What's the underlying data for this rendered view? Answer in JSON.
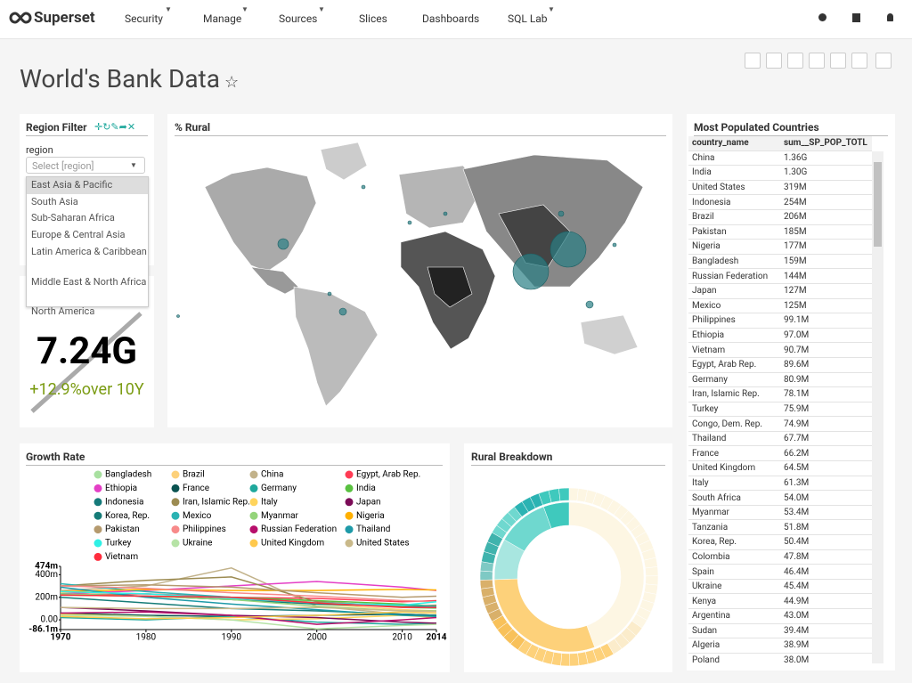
{
  "navbar": {
    "brand": "Superset",
    "menu": [
      "Security",
      "Manage",
      "Sources",
      "Slices",
      "Dashboards",
      "SQL Lab"
    ]
  },
  "dashboard": {
    "title": "World's Bank Data"
  },
  "region_filter": {
    "title": "Region Filter",
    "label": "region",
    "placeholder": "Select [region]",
    "options": [
      "East Asia & Pacific",
      "South Asia",
      "Sub-Saharan Africa",
      "Europe & Central Asia",
      "Latin America & Caribbean",
      "Middle East & North Africa",
      "North America"
    ]
  },
  "big_number": {
    "value": "7.24G",
    "change": "+12.9%over 10Y"
  },
  "map": {
    "title": "% Rural"
  },
  "table": {
    "title": "Most Populated Countries",
    "columns": [
      "country_name",
      "sum__SP_POP_TOTL"
    ],
    "rows": [
      [
        "China",
        "1.36G"
      ],
      [
        "India",
        "1.30G"
      ],
      [
        "United States",
        "319M"
      ],
      [
        "Indonesia",
        "254M"
      ],
      [
        "Brazil",
        "206M"
      ],
      [
        "Pakistan",
        "185M"
      ],
      [
        "Nigeria",
        "177M"
      ],
      [
        "Bangladesh",
        "159M"
      ],
      [
        "Russian Federation",
        "144M"
      ],
      [
        "Japan",
        "127M"
      ],
      [
        "Mexico",
        "125M"
      ],
      [
        "Philippines",
        "99.1M"
      ],
      [
        "Ethiopia",
        "97.0M"
      ],
      [
        "Vietnam",
        "90.7M"
      ],
      [
        "Egypt, Arab Rep.",
        "89.6M"
      ],
      [
        "Germany",
        "80.9M"
      ],
      [
        "Iran, Islamic Rep.",
        "78.1M"
      ],
      [
        "Turkey",
        "75.9M"
      ],
      [
        "Congo, Dem. Rep.",
        "74.9M"
      ],
      [
        "Thailand",
        "67.7M"
      ],
      [
        "France",
        "66.2M"
      ],
      [
        "United Kingdom",
        "64.5M"
      ],
      [
        "Italy",
        "61.3M"
      ],
      [
        "South Africa",
        "54.0M"
      ],
      [
        "Myanmar",
        "53.4M"
      ],
      [
        "Tanzania",
        "51.8M"
      ],
      [
        "Korea, Rep.",
        "50.4M"
      ],
      [
        "Colombia",
        "47.8M"
      ],
      [
        "Spain",
        "46.4M"
      ],
      [
        "Ukraine",
        "45.4M"
      ],
      [
        "Kenya",
        "44.9M"
      ],
      [
        "Argentina",
        "43.0M"
      ],
      [
        "Sudan",
        "39.4M"
      ],
      [
        "Algeria",
        "38.9M"
      ],
      [
        "Poland",
        "38.0M"
      ]
    ]
  },
  "chart_data": {
    "type": "line",
    "title": "Growth Rate",
    "x": [
      1970,
      1980,
      1990,
      2000,
      2010,
      2014
    ],
    "xlim": [
      1970,
      2014
    ],
    "xticks": [
      1970,
      1980,
      1990,
      2000,
      2010,
      2014
    ],
    "ylim": [
      -86.1,
      474
    ],
    "yticks": [
      {
        "value": 474,
        "label": "474m"
      },
      {
        "value": 400,
        "label": "400m"
      },
      {
        "value": 200,
        "label": "200m"
      },
      {
        "value": 0,
        "label": "0.00"
      },
      {
        "value": -86.1,
        "label": "-86.1m"
      }
    ],
    "series": [
      {
        "name": "Bangladesh",
        "color": "#a8e0a0",
        "values": [
          250,
          230,
          200,
          160,
          110,
          100
        ]
      },
      {
        "name": "Brazil",
        "color": "#fdd17a",
        "values": [
          240,
          210,
          180,
          140,
          90,
          80
        ]
      },
      {
        "name": "China",
        "color": "#c2b28a",
        "values": [
          260,
          300,
          460,
          120,
          50,
          40
        ]
      },
      {
        "name": "Egypt, Arab Rep.",
        "color": "#ff3b54",
        "values": [
          220,
          230,
          200,
          190,
          160,
          170
        ]
      },
      {
        "name": "Ethiopia",
        "color": "#e43fc6",
        "values": [
          230,
          260,
          300,
          340,
          290,
          260
        ]
      },
      {
        "name": "France",
        "color": "#0b5351",
        "values": [
          60,
          40,
          30,
          40,
          50,
          40
        ]
      },
      {
        "name": "Germany",
        "color": "#1fa89c",
        "values": [
          20,
          0,
          30,
          -20,
          -40,
          -30
        ]
      },
      {
        "name": "India",
        "color": "#59c140",
        "values": [
          220,
          210,
          200,
          170,
          140,
          120
        ]
      },
      {
        "name": "Indonesia",
        "color": "#157a7a",
        "values": [
          230,
          210,
          180,
          140,
          120,
          110
        ]
      },
      {
        "name": "Iran, Islamic Rep.",
        "color": "#9c8b52",
        "values": [
          300,
          350,
          380,
          160,
          120,
          130
        ]
      },
      {
        "name": "Italy",
        "color": "#ffd45c",
        "values": [
          50,
          30,
          0,
          10,
          40,
          20
        ]
      },
      {
        "name": "Japan",
        "color": "#7b0b57",
        "values": [
          110,
          80,
          40,
          20,
          -20,
          -30
        ]
      },
      {
        "name": "Korea, Rep.",
        "color": "#167c78",
        "values": [
          200,
          150,
          100,
          80,
          50,
          40
        ]
      },
      {
        "name": "Mexico",
        "color": "#2bb3b3",
        "values": [
          320,
          250,
          200,
          150,
          130,
          120
        ]
      },
      {
        "name": "Myanmar",
        "color": "#94d47a",
        "values": [
          230,
          210,
          180,
          120,
          80,
          80
        ]
      },
      {
        "name": "Nigeria",
        "color": "#ffb000",
        "values": [
          250,
          270,
          260,
          260,
          270,
          265
        ]
      },
      {
        "name": "Pakistan",
        "color": "#b59a6e",
        "values": [
          300,
          310,
          290,
          240,
          200,
          210
        ]
      },
      {
        "name": "Philippines",
        "color": "#f78a8a",
        "values": [
          300,
          280,
          240,
          210,
          170,
          160
        ]
      },
      {
        "name": "Russian Federation",
        "color": "#b70e6b",
        "values": [
          60,
          70,
          40,
          -40,
          0,
          20
        ]
      },
      {
        "name": "Thailand",
        "color": "#1e9aa8",
        "values": [
          290,
          200,
          140,
          90,
          40,
          30
        ]
      },
      {
        "name": "Turkey",
        "color": "#2ff0e5",
        "values": [
          250,
          230,
          190,
          150,
          130,
          160
        ]
      },
      {
        "name": "Ukraine",
        "color": "#b6e3a6",
        "values": [
          40,
          30,
          0,
          -80,
          -50,
          -40
        ]
      },
      {
        "name": "United Kingdom",
        "color": "#ffc94d",
        "values": [
          30,
          10,
          20,
          40,
          70,
          60
        ]
      },
      {
        "name": "United States",
        "color": "#c9b98a",
        "values": [
          110,
          100,
          100,
          110,
          80,
          75
        ]
      },
      {
        "name": "Vietnam",
        "color": "#ff2d3d",
        "values": [
          220,
          210,
          200,
          150,
          110,
          110
        ]
      }
    ]
  },
  "rural_breakdown": {
    "title": "Rural Breakdown"
  }
}
